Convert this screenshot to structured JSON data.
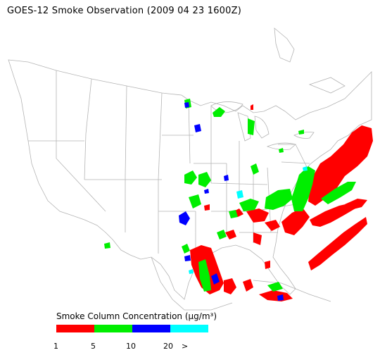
{
  "title": "GOES-12 Smoke Observation (2009 04 23  1600Z)",
  "legend": {
    "title": "Smoke Column Concentration (μg/m³)",
    "colors": [
      "#ff0000",
      "#00ee00",
      "#0000ff",
      "#00ffff"
    ],
    "ticks": [
      "1",
      "5",
      "10",
      "20",
      ">"
    ]
  },
  "map": {
    "region": "Contiguous United States",
    "boundary_color": "#b4b4b4",
    "smoke_levels": [
      {
        "range": "1-5",
        "color": "#ff0000"
      },
      {
        "range": "5-10",
        "color": "#00ee00"
      },
      {
        "range": "10-20",
        "color": "#0000ff"
      },
      {
        "range": ">20",
        "color": "#00ffff"
      }
    ]
  }
}
